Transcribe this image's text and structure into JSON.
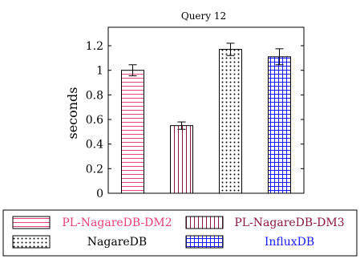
{
  "chart_data": {
    "type": "bar",
    "title": "Query 12",
    "xlabel": "",
    "ylabel": "seconds",
    "ylim": [
      0,
      1.35
    ],
    "yticks": [
      0,
      0.2,
      0.4,
      0.6,
      0.8,
      1,
      1.2
    ],
    "grid": false,
    "legend_placement": "bottom",
    "series": [
      {
        "name": "PL-NagareDB-DM2",
        "value": 1.0,
        "error": 0.045,
        "color": "#e8407a",
        "pattern": "horizontal-lines"
      },
      {
        "name": "PL-NagareDB-DM3",
        "value": 0.55,
        "error": 0.03,
        "color": "#8c1744",
        "pattern": "vertical-lines"
      },
      {
        "name": "NagareDB",
        "value": 1.17,
        "error": 0.05,
        "color": "#000000",
        "pattern": "dots"
      },
      {
        "name": "InfluxDB",
        "value": 1.11,
        "error": 0.065,
        "color": "#1a1aff",
        "pattern": "grid"
      }
    ]
  }
}
